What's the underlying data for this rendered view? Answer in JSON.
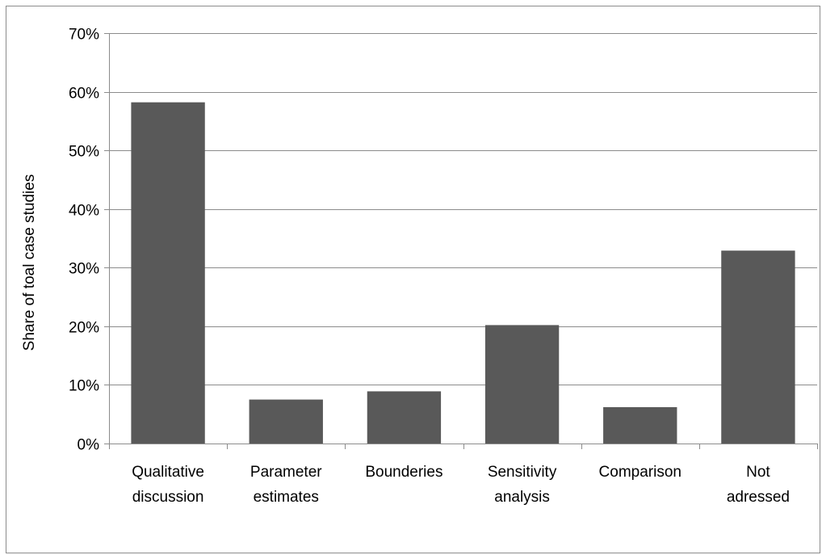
{
  "chart_data": {
    "type": "bar",
    "ylabel": "Share of toal case  studies",
    "xlabel": "",
    "title": "",
    "categories": [
      [
        "Qualitative",
        "discussion"
      ],
      [
        "Parameter",
        "estimates"
      ],
      [
        "Bounderies"
      ],
      [
        "Sensitivity",
        "analysis"
      ],
      [
        "Comparison"
      ],
      [
        "Not",
        "adressed"
      ]
    ],
    "values": [
      0.582,
      0.075,
      0.089,
      0.202,
      0.062,
      0.329
    ],
    "ylim": [
      0,
      0.7
    ],
    "yticks": [
      0,
      0.1,
      0.2,
      0.3,
      0.4,
      0.5,
      0.6,
      0.7
    ],
    "ytick_labels": [
      "0%",
      "10%",
      "20%",
      "30%",
      "40%",
      "50%",
      "60%",
      "70%"
    ],
    "grid": true,
    "bar_color": "#595959",
    "grid_color": "#8c8c8c"
  }
}
